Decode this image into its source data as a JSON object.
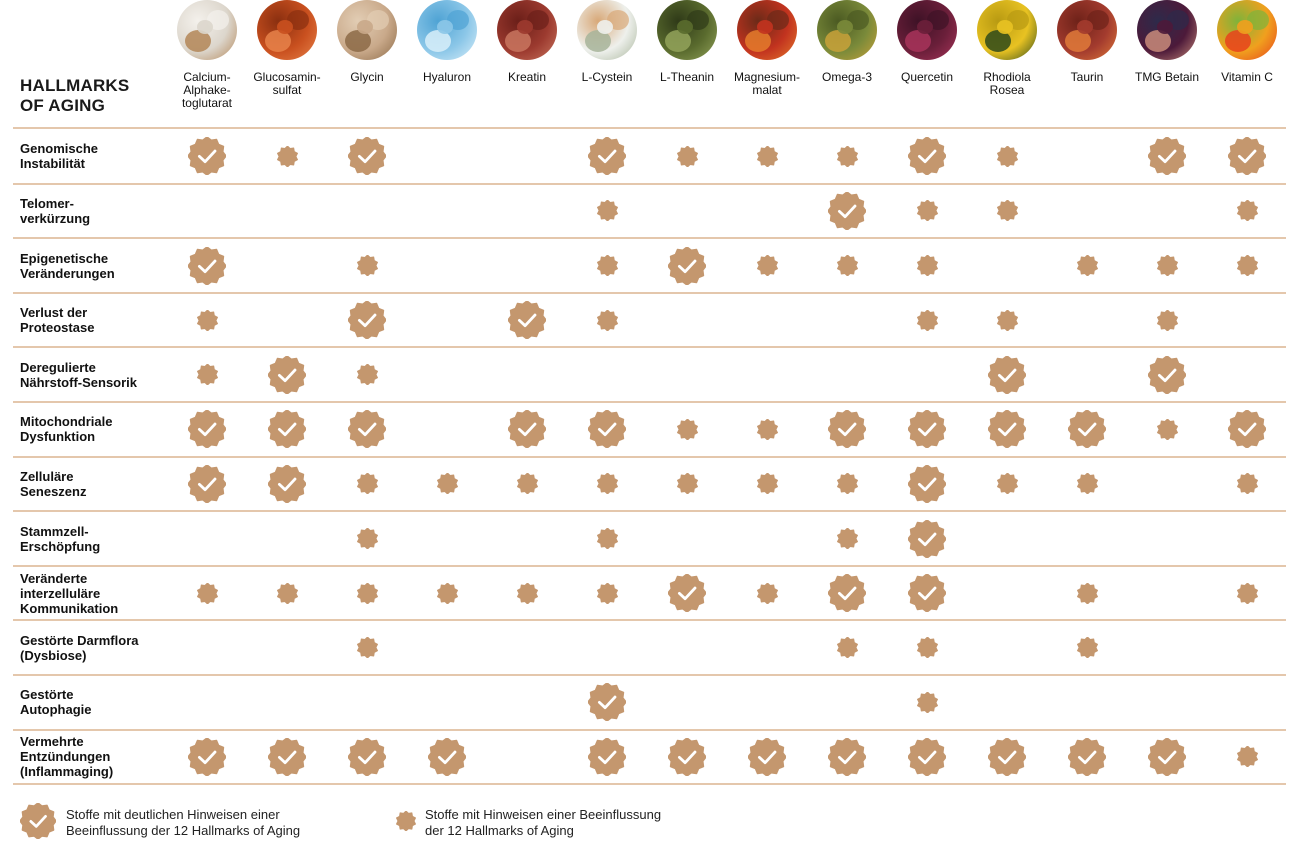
{
  "table_title": "HALLMARKS\nOF AGING",
  "colors": {
    "accent": "#c4976e",
    "rule": "#e4c7ac",
    "check": "#ffffff"
  },
  "icons": {
    "strong": "seal-check-icon",
    "weak": "seal-dot-icon"
  },
  "supplements": [
    {
      "name": "Calcium-\nAlphake-\ntoglutarat",
      "photo": [
        "#dcd6cc",
        "#b38657",
        "#f4f1ec"
      ]
    },
    {
      "name": "Glucosamin-\nsulfat",
      "photo": [
        "#c9501f",
        "#e7834a",
        "#8a2f10"
      ]
    },
    {
      "name": "Glycin",
      "photo": [
        "#c9a98a",
        "#8c6a47",
        "#e2cdb4"
      ]
    },
    {
      "name": "Hyaluron",
      "photo": [
        "#8cc7e8",
        "#d8eef9",
        "#4fa3d4"
      ]
    },
    {
      "name": "Kreatin",
      "photo": [
        "#9c3a2f",
        "#c9765f",
        "#6b1f19"
      ]
    },
    {
      "name": "L-Cystein",
      "photo": [
        "#eef0ec",
        "#a7b49a",
        "#d8a878"
      ]
    },
    {
      "name": "L-Theanin",
      "photo": [
        "#5a6b2e",
        "#93a35a",
        "#2f3a18"
      ]
    },
    {
      "name": "Magnesium-\nmalat",
      "photo": [
        "#c2331f",
        "#e57b2c",
        "#6b2a18"
      ]
    },
    {
      "name": "Omega-3",
      "photo": [
        "#7a8a3a",
        "#c9a23a",
        "#4b5a22"
      ]
    },
    {
      "name": "Quercetin",
      "photo": [
        "#6b1f3a",
        "#a8345a",
        "#3e1226"
      ]
    },
    {
      "name": "Rhodiola\nRosea",
      "photo": [
        "#e8c222",
        "#2f4a1a",
        "#b89a12"
      ]
    },
    {
      "name": "Taurin",
      "photo": [
        "#a33b2e",
        "#e07a3a",
        "#6e2219"
      ]
    },
    {
      "name": "TMG Betain",
      "photo": [
        "#4d1a3a",
        "#c98b7a",
        "#2d2a4a"
      ]
    },
    {
      "name": "Vitamin C",
      "photo": [
        "#f0a01e",
        "#e8431c",
        "#7fb33a"
      ]
    }
  ],
  "hallmarks": [
    {
      "label": "Genomische\nInstabilität",
      "marks": [
        "S",
        "W",
        "S",
        "",
        "",
        "S",
        "W",
        "W",
        "W",
        "S",
        "W",
        "",
        "S",
        "S"
      ]
    },
    {
      "label": "Telomer-\nverkürzung",
      "marks": [
        "",
        "",
        "",
        "",
        "",
        "W",
        "",
        "",
        "S",
        "W",
        "W",
        "",
        "",
        "W"
      ]
    },
    {
      "label": "Epigenetische\nVeränderungen",
      "marks": [
        "S",
        "",
        "W",
        "",
        "",
        "W",
        "S",
        "W",
        "W",
        "W",
        "",
        "W",
        "W",
        "W"
      ]
    },
    {
      "label": "Verlust der\nProteostase",
      "marks": [
        "W",
        "",
        "S",
        "",
        "S",
        "W",
        "",
        "",
        "",
        "W",
        "W",
        "",
        "W",
        ""
      ]
    },
    {
      "label": "Deregulierte\nNährstoff-Sensorik",
      "marks": [
        "W",
        "S",
        "W",
        "",
        "",
        "",
        "",
        "",
        "",
        "",
        "S",
        "",
        "S",
        ""
      ]
    },
    {
      "label": "Mitochondriale\nDysfunktion",
      "marks": [
        "S",
        "S",
        "S",
        "",
        "S",
        "S",
        "W",
        "W",
        "S",
        "S",
        "S",
        "S",
        "W",
        "S"
      ]
    },
    {
      "label": "Zelluläre\nSeneszenz",
      "marks": [
        "S",
        "S",
        "W",
        "W",
        "W",
        "W",
        "W",
        "W",
        "W",
        "S",
        "W",
        "W",
        "",
        "W"
      ]
    },
    {
      "label": "Stammzell-\nErschöpfung",
      "marks": [
        "",
        "",
        "W",
        "",
        "",
        "W",
        "",
        "",
        "W",
        "S",
        "",
        "",
        "",
        ""
      ]
    },
    {
      "label": "Veränderte\ninterzelluläre\nKommunikation",
      "marks": [
        "W",
        "W",
        "W",
        "W",
        "W",
        "W",
        "S",
        "W",
        "S",
        "S",
        "",
        "W",
        "",
        "W"
      ]
    },
    {
      "label": "Gestörte Darmflora\n(Dysbiose)",
      "marks": [
        "",
        "",
        "W",
        "",
        "",
        "",
        "",
        "",
        "W",
        "W",
        "",
        "W",
        "",
        ""
      ]
    },
    {
      "label": "Gestörte\nAutophagie",
      "marks": [
        "",
        "",
        "",
        "",
        "",
        "S",
        "",
        "",
        "",
        "W",
        "",
        "",
        "",
        ""
      ]
    },
    {
      "label": "Vermehrte\nEntzündungen\n(Inflammaging)",
      "marks": [
        "S",
        "S",
        "S",
        "S",
        "",
        "S",
        "S",
        "S",
        "S",
        "S",
        "S",
        "S",
        "S",
        "W"
      ]
    }
  ],
  "legend": {
    "strong_text": "Stoffe mit deutlichen Hinweisen einer\nBeeinflussung der 12 Hallmarks of Aging",
    "weak_text": "Stoffe mit Hinweisen einer Beeinflussung\nder 12 Hallmarks of Aging"
  }
}
